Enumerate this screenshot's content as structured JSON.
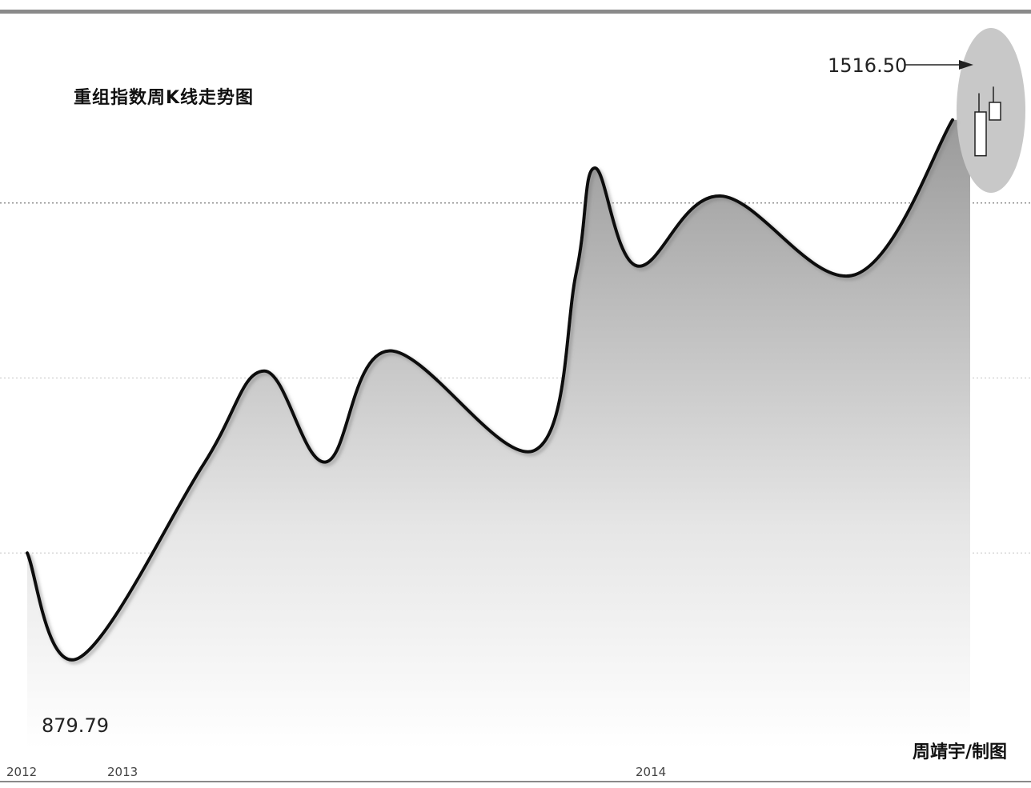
{
  "chart_data": {
    "type": "line",
    "title": "重组指数周K线走势图",
    "xlabel": "",
    "ylabel": "",
    "x_ticks": [
      "2012",
      "2013",
      "2014"
    ],
    "ylim": [
      800,
      1600
    ],
    "gridlines": "horizontal, dotted",
    "legend": "none",
    "series": [
      {
        "values": [
          1000,
          879.79,
          1101,
          1208,
          1104,
          1231,
          1117,
          1321,
          1440,
          1328,
          1408,
          1318,
          1495,
          1339,
          1476
        ]
      }
    ],
    "annotations": {
      "low_label": "879.79",
      "high_label": "1516.50"
    },
    "latest_candles": [
      {
        "open": 1454,
        "close": 1504,
        "high": 1509,
        "low": 1454
      },
      {
        "open": 1499,
        "close": 1515,
        "high": 1516.5,
        "low": 1499
      }
    ],
    "credit": "周靖宇/制图"
  },
  "colors": {
    "line": "#111111",
    "area_top": "#9a9a9a",
    "area_bottom": "#ffffff",
    "highlight_ellipse": "#c8c8c8",
    "frame": "#8a8a8a"
  }
}
